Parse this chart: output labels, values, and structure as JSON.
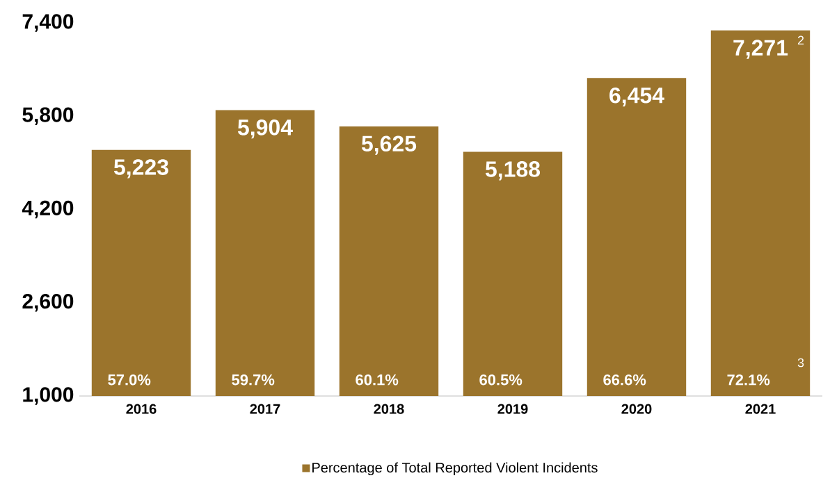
{
  "chart_data": {
    "type": "bar",
    "categories": [
      "2016",
      "2017",
      "2018",
      "2019",
      "2020",
      "2021"
    ],
    "series": [
      {
        "name": "Percentage of Total Reported Violent Incidents",
        "color": "#9b742c",
        "values": [
          5223,
          5904,
          5625,
          5188,
          6454,
          7271
        ],
        "value_labels": [
          "5,223",
          "5,904",
          "5,625",
          "5,188",
          "6,454",
          "7,271"
        ]
      }
    ],
    "ylim": [
      1000,
      7400
    ],
    "yticks": [
      {
        "value": 1000,
        "label": "1,000"
      },
      {
        "value": 2600,
        "label": "2,600"
      },
      {
        "value": 4200,
        "label": "4,200"
      },
      {
        "value": 5800,
        "label": "5,800"
      },
      {
        "value": 7400,
        "label": "7,400"
      }
    ],
    "grid": false,
    "legend": "bottom",
    "annotations": [
      "57.0%",
      "59.7%",
      "60.1%",
      "60.5%",
      "66.6%",
      "72.1%",
      "2",
      "3"
    ]
  }
}
